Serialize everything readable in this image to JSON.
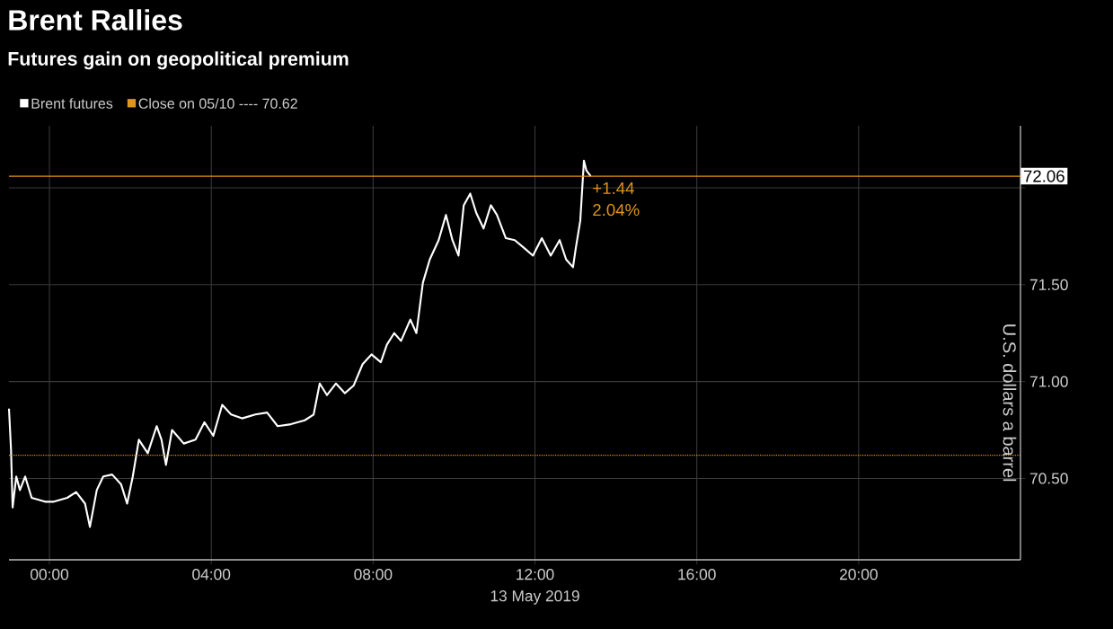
{
  "chart_data": {
    "type": "line",
    "title": "Brent Rallies",
    "subtitle": "Futures gain on geopolitical premium",
    "xlabel": "13 May 2019",
    "ylabel": "U.S. dollars a barrel",
    "x": [
      -1.0,
      -0.95,
      -0.91,
      -0.82,
      -0.73,
      -0.6,
      -0.44,
      -0.11,
      0.11,
      0.44,
      0.66,
      0.88,
      1.0,
      1.17,
      1.33,
      1.55,
      1.77,
      1.92,
      2.06,
      2.21,
      2.43,
      2.65,
      2.77,
      2.88,
      3.03,
      3.32,
      3.61,
      3.83,
      4.05,
      4.27,
      4.49,
      4.76,
      5.09,
      5.38,
      5.64,
      5.97,
      6.31,
      6.53,
      6.68,
      6.86,
      7.08,
      7.3,
      7.52,
      7.74,
      7.96,
      8.19,
      8.34,
      8.52,
      8.69,
      8.92,
      9.07,
      9.23,
      9.4,
      9.62,
      9.8,
      9.96,
      10.11,
      10.24,
      10.4,
      10.55,
      10.73,
      10.91,
      11.06,
      11.28,
      11.5,
      11.73,
      11.95,
      12.17,
      12.39,
      12.61,
      12.77,
      12.94,
      13.01,
      13.12,
      13.21,
      13.27,
      13.38
    ],
    "series": [
      {
        "name": "Brent futures",
        "color": "#ffffff",
        "values": [
          70.86,
          70.65,
          70.35,
          70.51,
          70.44,
          70.51,
          70.4,
          70.38,
          70.38,
          70.4,
          70.43,
          70.37,
          70.25,
          70.44,
          70.51,
          70.52,
          70.47,
          70.37,
          70.51,
          70.7,
          70.63,
          70.77,
          70.7,
          70.57,
          70.75,
          70.68,
          70.7,
          70.79,
          70.72,
          70.88,
          70.83,
          70.81,
          70.83,
          70.84,
          70.77,
          70.78,
          70.8,
          70.83,
          70.99,
          70.93,
          70.99,
          70.94,
          70.98,
          71.09,
          71.14,
          71.1,
          71.19,
          71.25,
          71.21,
          71.32,
          71.25,
          71.51,
          71.63,
          71.73,
          71.86,
          71.73,
          71.65,
          71.91,
          71.97,
          71.87,
          71.79,
          71.91,
          71.86,
          71.74,
          71.73,
          71.69,
          71.65,
          71.74,
          71.65,
          71.73,
          71.63,
          71.59,
          71.69,
          71.83,
          72.14,
          72.09,
          72.06
        ]
      }
    ],
    "xlim": [
      -1,
      24
    ],
    "ylim": [
      70.08,
      72.32
    ],
    "xticks": [
      {
        "value": 0,
        "label": "00:00"
      },
      {
        "value": 4,
        "label": "04:00"
      },
      {
        "value": 8,
        "label": "08:00"
      },
      {
        "value": 12,
        "label": "12:00"
      },
      {
        "value": 16,
        "label": "16:00"
      },
      {
        "value": 20,
        "label": "20:00"
      }
    ],
    "yticks": [
      {
        "value": 70.5,
        "label": "70.50"
      },
      {
        "value": 71,
        "label": "71.00"
      },
      {
        "value": 71.5,
        "label": "71.50"
      },
      {
        "value": 72,
        "label": null
      }
    ],
    "ref_lines": [
      {
        "axis": "y",
        "value": 70.62,
        "label": "Close on 05/10 ---- 70.62",
        "color": "#e0961c",
        "line_style": "dotted"
      },
      {
        "axis": "y",
        "value": 72.06,
        "label": "72.06",
        "color": "#e0961c",
        "line_style": "solid"
      }
    ],
    "annotations": [
      "+1.44",
      "2.04%"
    ],
    "grid": true,
    "legend": "top left",
    "marker": "none",
    "line_style": "solid"
  }
}
